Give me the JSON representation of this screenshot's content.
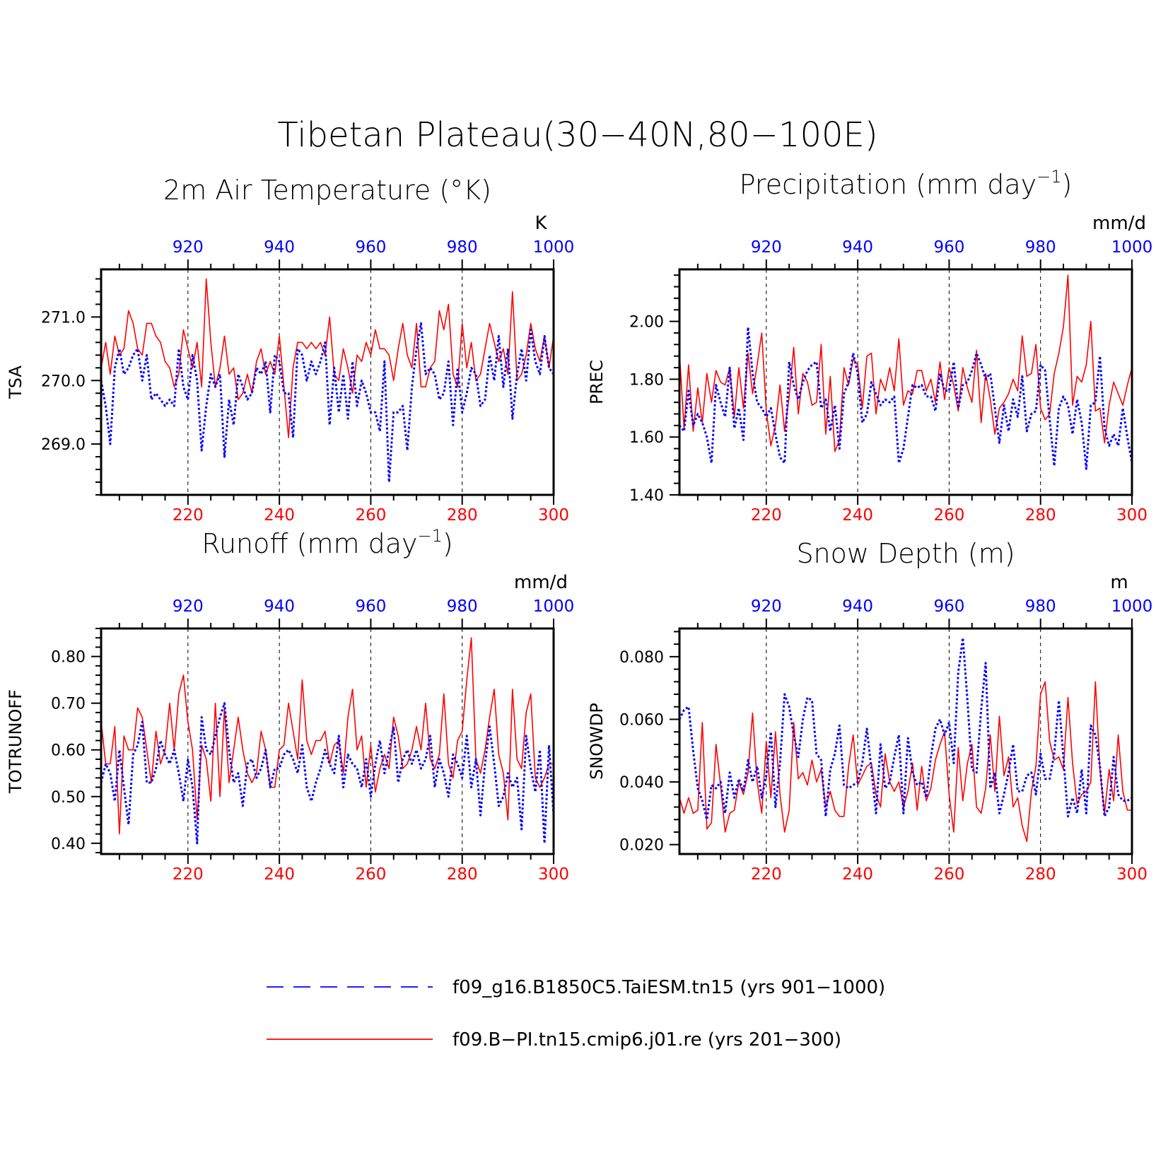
{
  "figure": {
    "title": "Tibetan Plateau(30−40N,80−100E)"
  },
  "legend": {
    "placement": "bottom-center",
    "entries": [
      {
        "label": "f09_g16.B1850C5.TaiESM.tn15 (yrs 901−1000)",
        "color": "#0000ff",
        "style": "dashed"
      },
      {
        "label": "f09.B−PI.tn15.cmip6.j01.re (yrs 201−300)",
        "color": "#ff0000",
        "style": "solid"
      }
    ]
  },
  "colors": {
    "series_a": "#ff0000",
    "series_b": "#0000ff",
    "frame": "#000000"
  },
  "chart_data": [
    {
      "type": "line",
      "title": "2m Air Temperature (°K)",
      "ylabel": "TSA",
      "units": "K",
      "grid": "vertical dashed at 220, 240, 260, 280",
      "xlim_bottom": [
        201,
        300
      ],
      "xticks_bottom": [
        220,
        240,
        260,
        280,
        300
      ],
      "xlim_top": [
        901,
        1000
      ],
      "xticks_top": [
        920,
        940,
        960,
        980,
        1000
      ],
      "ylim": [
        268.2,
        271.75
      ],
      "yticks": [
        269.0,
        270.0,
        271.0
      ],
      "yticklabels": [
        "269.0",
        "270.0",
        "271.0"
      ],
      "series": [
        {
          "name": "f09.B−PI.tn15.cmip6.j01.re (yrs 201−300)",
          "axis": "bottom",
          "x_start": 201,
          "values": [
            270.2,
            270.6,
            270.1,
            270.7,
            270.4,
            270.5,
            271.1,
            270.9,
            270.5,
            270.4,
            270.9,
            270.9,
            270.7,
            270.6,
            270.3,
            270.2,
            269.9,
            270.1,
            270.8,
            270.5,
            270.2,
            270.6,
            269.9,
            271.6,
            270.6,
            269.9,
            270.2,
            270.7,
            270.1,
            270.2,
            269.7,
            269.8,
            270.1,
            269.8,
            270.3,
            270.5,
            270.1,
            270.3,
            270.1,
            270.7,
            269.9,
            269.1,
            270.2,
            270.6,
            270.6,
            270.5,
            270.6,
            270.5,
            270.6,
            270.4,
            271.0,
            270.1,
            270.0,
            270.5,
            270.2,
            269.8,
            270.4,
            270.3,
            270.6,
            270.4,
            270.8,
            270.5,
            270.5,
            270.4,
            270.0,
            270.5,
            270.9,
            270.4,
            270.2,
            270.9,
            269.9,
            269.9,
            270.2,
            270.3,
            271.1,
            270.8,
            271.2,
            270.1,
            269.9,
            270.9,
            270.2,
            270.6,
            270.0,
            270.1,
            270.5,
            270.9,
            270.6,
            270.3,
            270.5,
            270.1,
            271.4,
            270.0,
            270.1,
            270.4,
            270.9,
            270.5,
            270.3,
            270.7,
            270.2,
            270.7
          ]
        },
        {
          "name": "f09_g16.B1850C5.TaiESM.tn15 (yrs 901−1000)",
          "axis": "top",
          "x_start": 901,
          "values": [
            270.0,
            269.6,
            269.0,
            270.2,
            270.5,
            270.1,
            270.2,
            270.4,
            270.5,
            270.0,
            270.4,
            269.7,
            269.8,
            269.7,
            269.6,
            269.7,
            269.6,
            270.5,
            269.9,
            269.7,
            270.4,
            270.0,
            268.9,
            269.6,
            270.1,
            269.9,
            270.1,
            268.8,
            269.7,
            269.3,
            270.1,
            269.9,
            269.7,
            269.8,
            270.2,
            270.1,
            270.3,
            269.5,
            270.4,
            270.3,
            269.8,
            269.8,
            269.1,
            270.5,
            270.4,
            270.0,
            270.3,
            270.1,
            270.3,
            270.6,
            269.3,
            270.2,
            269.5,
            270.1,
            269.4,
            270.3,
            269.6,
            270.0,
            269.8,
            269.5,
            269.5,
            269.2,
            270.3,
            268.4,
            269.5,
            269.5,
            269.6,
            268.9,
            269.9,
            270.5,
            270.9,
            270.1,
            270.2,
            270.1,
            269.7,
            269.8,
            270.3,
            269.3,
            270.2,
            269.5,
            269.8,
            270.2,
            270.1,
            269.6,
            269.7,
            270.4,
            270.0,
            270.7,
            269.9,
            270.5,
            269.4,
            270.1,
            270.5,
            270.0,
            270.8,
            270.3,
            270.1,
            270.7,
            270.2,
            270.1
          ]
        }
      ]
    },
    {
      "type": "line",
      "title": "Precipitation (mm day",
      "title_sup": "−1",
      "title_end": ")",
      "ylabel": "PREC",
      "units": "mm/d",
      "grid": "vertical dashed at 220, 240, 260, 280",
      "xlim_bottom": [
        201,
        300
      ],
      "xticks_bottom": [
        220,
        240,
        260,
        280,
        300
      ],
      "xlim_top": [
        901,
        1000
      ],
      "xticks_top": [
        920,
        940,
        960,
        980,
        1000
      ],
      "ylim": [
        1.4,
        2.18
      ],
      "yticks": [
        1.4,
        1.6,
        1.8,
        2.0
      ],
      "yticklabels": [
        "1.40",
        "1.60",
        "1.80",
        "2.00"
      ],
      "series": [
        {
          "name": "f09.B−PI.tn15.cmip6.j01.re (yrs 201−300)",
          "axis": "bottom",
          "x_start": 201,
          "values": [
            1.89,
            1.63,
            1.85,
            1.62,
            1.77,
            1.65,
            1.82,
            1.72,
            1.83,
            1.79,
            1.78,
            1.84,
            1.67,
            1.84,
            1.7,
            1.89,
            1.75,
            1.85,
            1.96,
            1.69,
            1.57,
            1.64,
            1.78,
            1.62,
            1.74,
            1.91,
            1.68,
            1.82,
            1.79,
            1.71,
            1.72,
            1.92,
            1.61,
            1.81,
            1.55,
            1.59,
            1.84,
            1.78,
            1.87,
            1.85,
            1.7,
            1.88,
            1.89,
            1.68,
            1.8,
            1.76,
            1.84,
            1.76,
            1.94,
            1.71,
            1.76,
            1.75,
            1.83,
            1.83,
            1.76,
            1.8,
            1.72,
            1.86,
            1.73,
            1.84,
            1.78,
            1.69,
            1.84,
            1.77,
            1.72,
            1.9,
            1.65,
            1.82,
            1.73,
            1.61,
            1.7,
            1.72,
            1.75,
            1.8,
            1.76,
            1.95,
            1.81,
            1.82,
            1.92,
            1.7,
            1.66,
            1.68,
            1.82,
            1.89,
            1.98,
            2.16,
            1.71,
            1.81,
            1.79,
            1.85,
            2.0,
            1.69,
            1.7,
            1.58,
            1.71,
            1.79,
            1.75,
            1.71,
            1.78,
            1.84
          ]
        },
        {
          "name": "f09_g16.B1850C5.TaiESM.tn15 (yrs 901−1000)",
          "axis": "top",
          "x_start": 901,
          "values": [
            1.64,
            1.62,
            1.76,
            1.64,
            1.68,
            1.65,
            1.6,
            1.51,
            1.78,
            1.72,
            1.67,
            1.84,
            1.63,
            1.7,
            1.59,
            1.98,
            1.82,
            1.72,
            1.7,
            1.67,
            1.7,
            1.61,
            1.53,
            1.51,
            1.86,
            1.78,
            1.73,
            1.79,
            1.83,
            1.85,
            1.86,
            1.7,
            1.73,
            1.62,
            1.71,
            1.56,
            1.75,
            1.79,
            1.89,
            1.82,
            1.65,
            1.68,
            1.79,
            1.75,
            1.71,
            1.73,
            1.72,
            1.74,
            1.51,
            1.56,
            1.67,
            1.78,
            1.77,
            1.78,
            1.74,
            1.74,
            1.69,
            1.82,
            1.76,
            1.76,
            1.86,
            1.7,
            1.78,
            1.79,
            1.83,
            1.89,
            1.85,
            1.8,
            1.82,
            1.7,
            1.58,
            1.71,
            1.62,
            1.73,
            1.67,
            1.81,
            1.62,
            1.68,
            1.69,
            1.85,
            1.83,
            1.66,
            1.5,
            1.7,
            1.74,
            1.71,
            1.61,
            1.73,
            1.65,
            1.49,
            1.71,
            1.72,
            1.88,
            1.63,
            1.57,
            1.61,
            1.57,
            1.7,
            1.6,
            1.51
          ]
        }
      ]
    },
    {
      "type": "line",
      "title": "Runoff (mm day",
      "title_sup": "−1",
      "title_end": ")",
      "ylabel": "TOTRUNOFF",
      "units": "mm/d",
      "grid": "vertical dashed at 220, 240, 260, 280",
      "xlim_bottom": [
        201,
        300
      ],
      "xticks_bottom": [
        220,
        240,
        260,
        280,
        300
      ],
      "xlim_top": [
        901,
        1000
      ],
      "xticks_top": [
        920,
        940,
        960,
        980,
        1000
      ],
      "ylim": [
        0.377,
        0.86
      ],
      "yticks": [
        0.4,
        0.5,
        0.6,
        0.7,
        0.8
      ],
      "yticklabels": [
        "0.40",
        "0.50",
        "0.60",
        "0.70",
        "0.80"
      ],
      "series": [
        {
          "name": "f09.B−PI.tn15.cmip6.j01.re (yrs 201−300)",
          "axis": "bottom",
          "x_start": 201,
          "values": [
            0.66,
            0.57,
            0.57,
            0.65,
            0.42,
            0.63,
            0.6,
            0.6,
            0.69,
            0.67,
            0.6,
            0.53,
            0.64,
            0.57,
            0.6,
            0.7,
            0.6,
            0.72,
            0.76,
            0.66,
            0.6,
            0.45,
            0.61,
            0.58,
            0.49,
            0.7,
            0.5,
            0.69,
            0.53,
            0.6,
            0.67,
            0.6,
            0.55,
            0.53,
            0.55,
            0.64,
            0.6,
            0.52,
            0.52,
            0.6,
            0.61,
            0.7,
            0.64,
            0.58,
            0.75,
            0.62,
            0.59,
            0.62,
            0.62,
            0.64,
            0.57,
            0.61,
            0.62,
            0.55,
            0.67,
            0.73,
            0.6,
            0.63,
            0.52,
            0.61,
            0.51,
            0.56,
            0.59,
            0.56,
            0.67,
            0.63,
            0.56,
            0.57,
            0.6,
            0.65,
            0.6,
            0.7,
            0.58,
            0.56,
            0.59,
            0.72,
            0.57,
            0.54,
            0.62,
            0.64,
            0.75,
            0.84,
            0.58,
            0.55,
            0.6,
            0.67,
            0.73,
            0.59,
            0.55,
            0.45,
            0.73,
            0.58,
            0.56,
            0.68,
            0.72,
            0.54,
            0.52,
            0.54,
            0.57,
            0.57
          ]
        },
        {
          "name": "f09_g16.B1850C5.TaiESM.tn15 (yrs 901−1000)",
          "axis": "top",
          "x_start": 901,
          "values": [
            0.53,
            0.57,
            0.55,
            0.49,
            0.6,
            0.52,
            0.44,
            0.59,
            0.61,
            0.66,
            0.53,
            0.53,
            0.56,
            0.62,
            0.59,
            0.57,
            0.6,
            0.55,
            0.49,
            0.58,
            0.52,
            0.4,
            0.67,
            0.6,
            0.59,
            0.63,
            0.67,
            0.7,
            0.6,
            0.53,
            0.55,
            0.48,
            0.57,
            0.58,
            0.54,
            0.56,
            0.6,
            0.52,
            0.56,
            0.56,
            0.59,
            0.6,
            0.58,
            0.55,
            0.61,
            0.52,
            0.49,
            0.53,
            0.56,
            0.6,
            0.57,
            0.55,
            0.63,
            0.52,
            0.59,
            0.57,
            0.56,
            0.52,
            0.58,
            0.5,
            0.57,
            0.62,
            0.55,
            0.6,
            0.65,
            0.53,
            0.58,
            0.6,
            0.57,
            0.6,
            0.56,
            0.58,
            0.63,
            0.52,
            0.58,
            0.55,
            0.5,
            0.59,
            0.57,
            0.54,
            0.63,
            0.52,
            0.58,
            0.46,
            0.57,
            0.65,
            0.57,
            0.48,
            0.5,
            0.55,
            0.52,
            0.54,
            0.43,
            0.63,
            0.56,
            0.51,
            0.6,
            0.4,
            0.61,
            0.46
          ]
        }
      ]
    },
    {
      "type": "line",
      "title": "Snow Depth (m)",
      "ylabel": "SNOWDP",
      "units": "m",
      "grid": "vertical dashed at 220, 240, 260, 280",
      "xlim_bottom": [
        201,
        300
      ],
      "xticks_bottom": [
        220,
        240,
        260,
        280,
        300
      ],
      "xlim_top": [
        901,
        1000
      ],
      "xticks_top": [
        920,
        940,
        960,
        980,
        1000
      ],
      "ylim": [
        0.017,
        0.089
      ],
      "yticks": [
        0.02,
        0.04,
        0.06,
        0.08
      ],
      "yticklabels": [
        "0.020",
        "0.040",
        "0.060",
        "0.080"
      ],
      "series": [
        {
          "name": "f09.B−PI.tn15.cmip6.j01.re (yrs 201−300)",
          "axis": "bottom",
          "x_start": 201,
          "values": [
            0.035,
            0.03,
            0.035,
            0.03,
            0.031,
            0.059,
            0.025,
            0.027,
            0.052,
            0.039,
            0.024,
            0.03,
            0.031,
            0.04,
            0.036,
            0.043,
            0.062,
            0.04,
            0.03,
            0.053,
            0.035,
            0.056,
            0.036,
            0.024,
            0.031,
            0.059,
            0.041,
            0.043,
            0.039,
            0.047,
            0.04,
            0.044,
            0.032,
            0.037,
            0.031,
            0.029,
            0.029,
            0.045,
            0.055,
            0.039,
            0.042,
            0.045,
            0.046,
            0.036,
            0.032,
            0.049,
            0.04,
            0.037,
            0.04,
            0.032,
            0.037,
            0.046,
            0.031,
            0.045,
            0.034,
            0.038,
            0.047,
            0.052,
            0.056,
            0.036,
            0.024,
            0.051,
            0.034,
            0.046,
            0.052,
            0.032,
            0.03,
            0.038,
            0.055,
            0.037,
            0.061,
            0.042,
            0.048,
            0.032,
            0.035,
            0.026,
            0.021,
            0.037,
            0.045,
            0.068,
            0.072,
            0.053,
            0.047,
            0.048,
            0.044,
            0.067,
            0.046,
            0.033,
            0.036,
            0.037,
            0.04,
            0.072,
            0.044,
            0.03,
            0.044,
            0.034,
            0.055,
            0.037,
            0.031,
            0.031
          ]
        },
        {
          "name": "f09_g16.B1850C5.TaiESM.tn15 (yrs 901−1000)",
          "axis": "top",
          "x_start": 901,
          "values": [
            0.06,
            0.063,
            0.064,
            0.05,
            0.038,
            0.034,
            0.028,
            0.039,
            0.038,
            0.04,
            0.03,
            0.043,
            0.035,
            0.041,
            0.037,
            0.047,
            0.04,
            0.045,
            0.035,
            0.042,
            0.056,
            0.032,
            0.046,
            0.068,
            0.064,
            0.055,
            0.048,
            0.06,
            0.067,
            0.066,
            0.049,
            0.047,
            0.029,
            0.044,
            0.049,
            0.058,
            0.039,
            0.038,
            0.039,
            0.04,
            0.046,
            0.057,
            0.044,
            0.03,
            0.052,
            0.038,
            0.04,
            0.048,
            0.055,
            0.03,
            0.054,
            0.043,
            0.039,
            0.04,
            0.035,
            0.048,
            0.057,
            0.06,
            0.055,
            0.059,
            0.046,
            0.075,
            0.086,
            0.066,
            0.044,
            0.043,
            0.063,
            0.078,
            0.038,
            0.043,
            0.03,
            0.036,
            0.043,
            0.052,
            0.037,
            0.037,
            0.042,
            0.043,
            0.036,
            0.049,
            0.041,
            0.041,
            0.049,
            0.066,
            0.048,
            0.029,
            0.035,
            0.03,
            0.044,
            0.03,
            0.058,
            0.055,
            0.045,
            0.029,
            0.032,
            0.048,
            0.036,
            0.034,
            0.034,
            0.035
          ]
        }
      ]
    }
  ]
}
